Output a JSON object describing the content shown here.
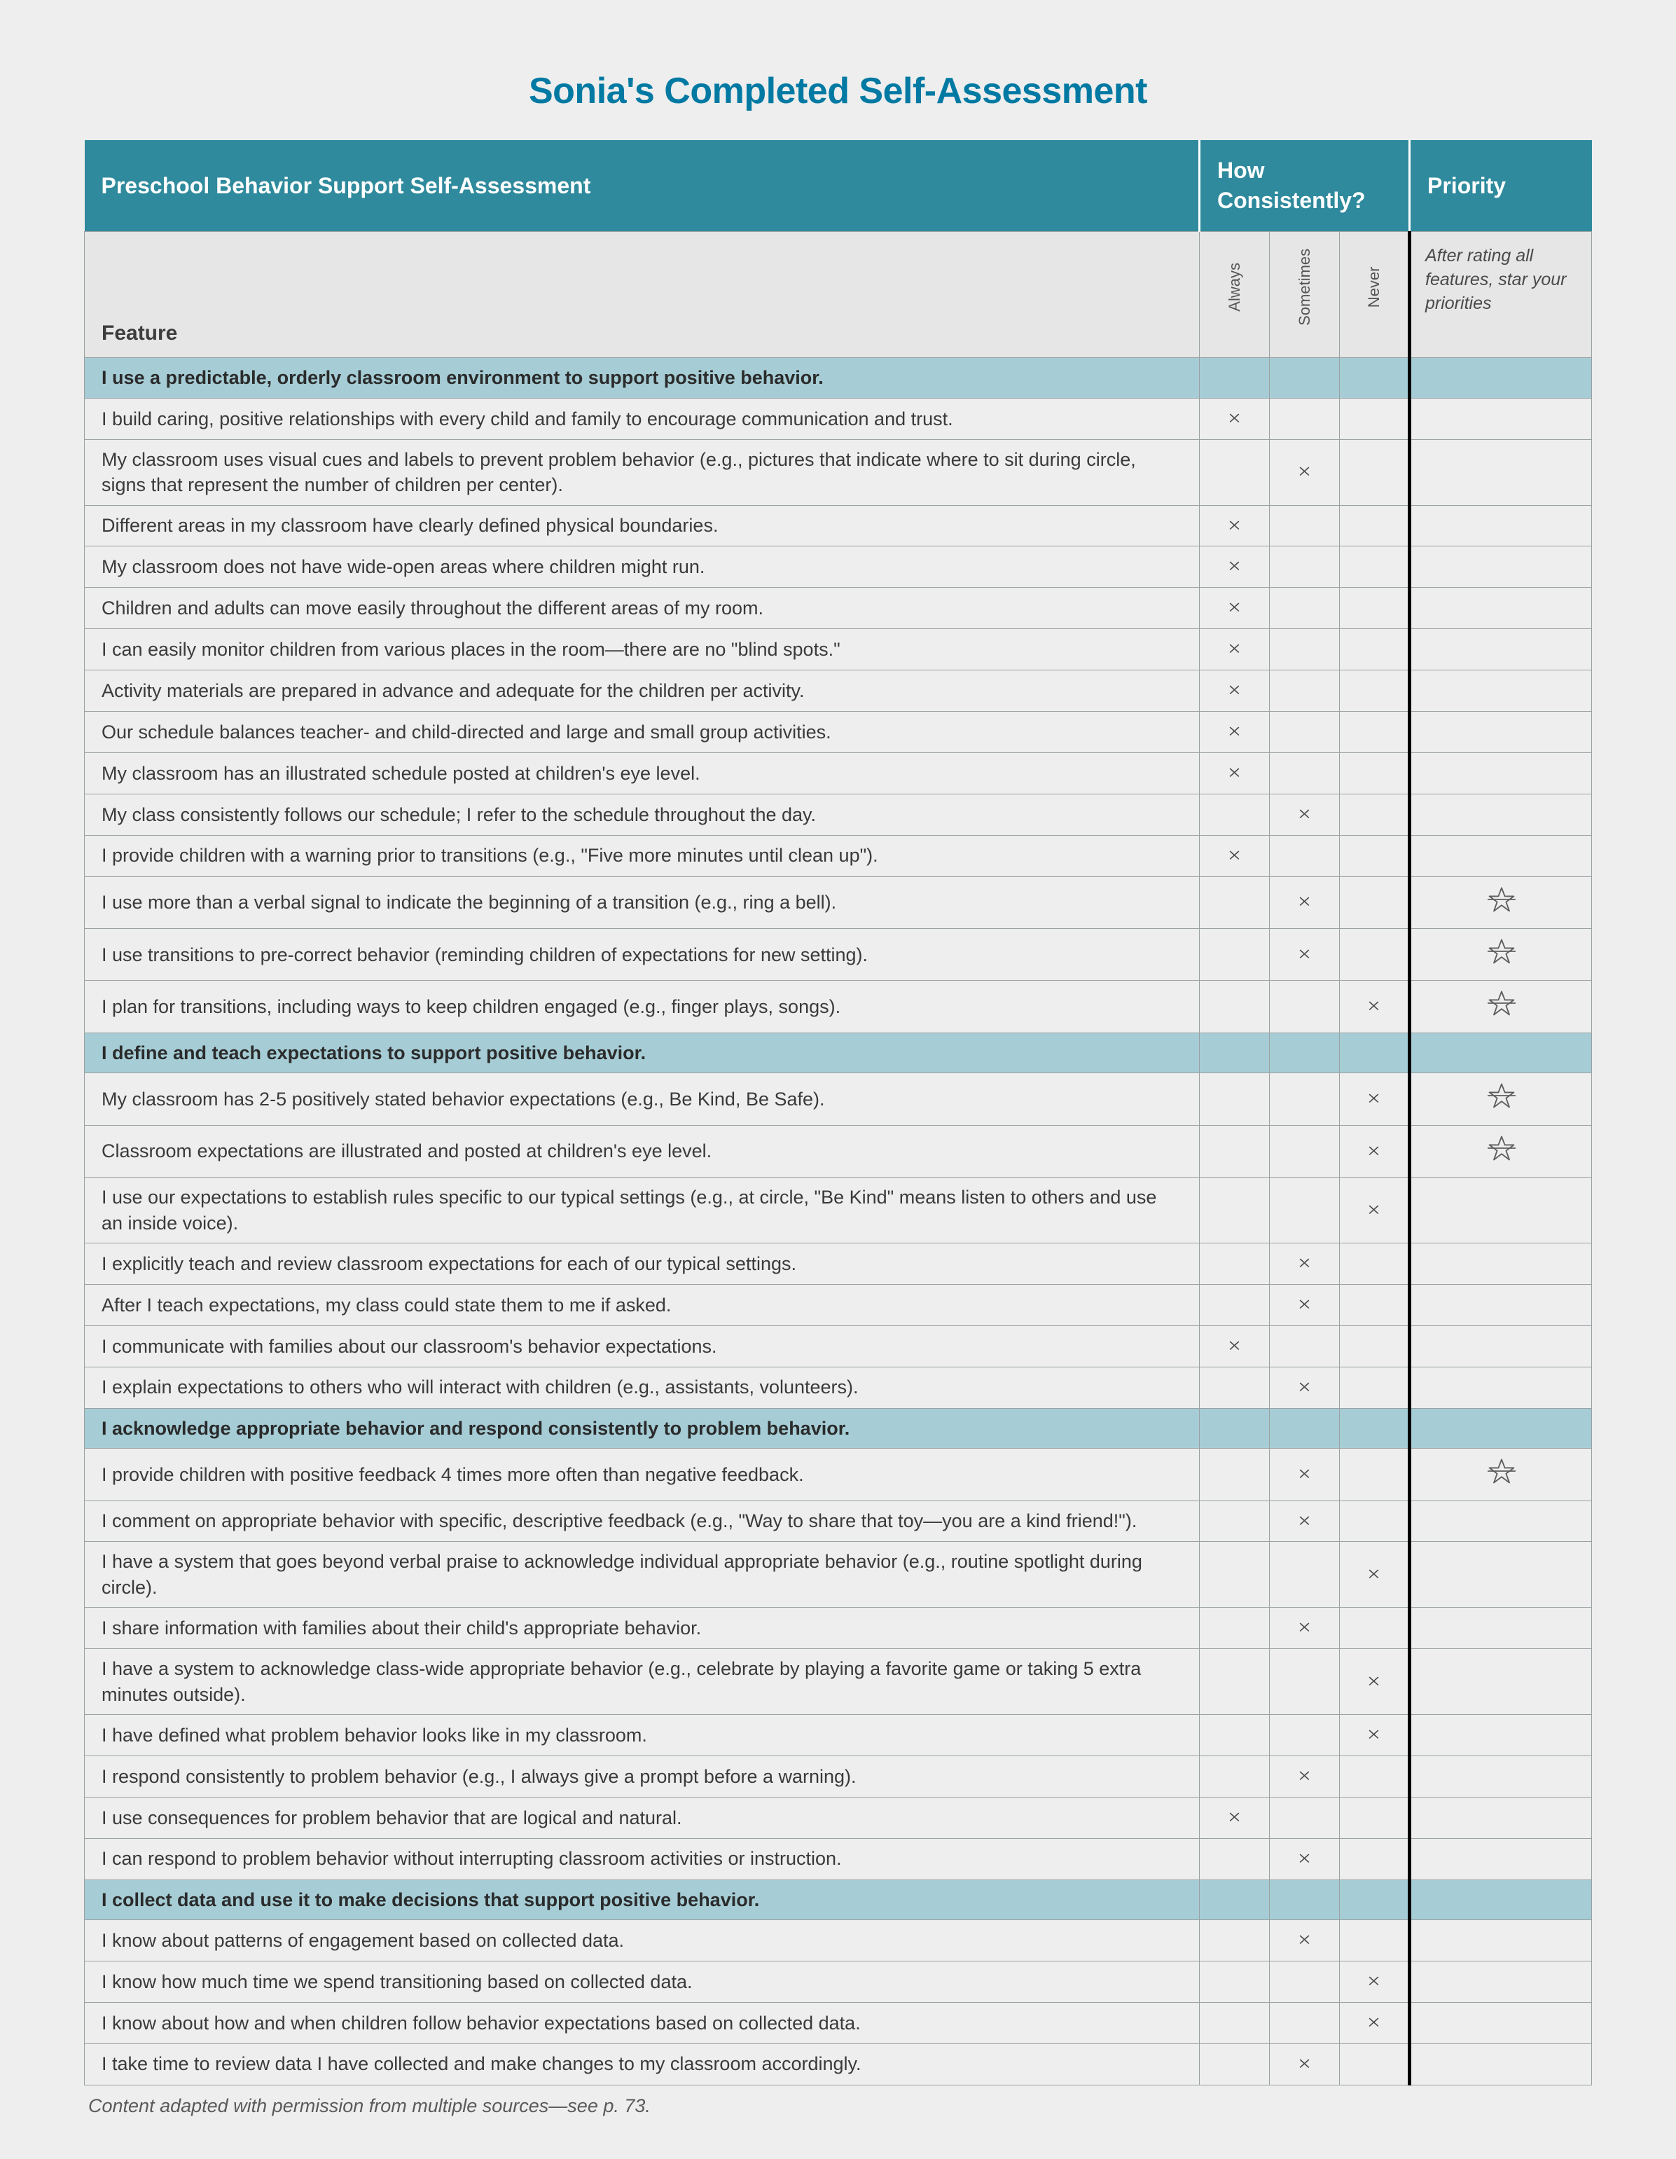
{
  "title": "Sonia's Completed Self-Assessment",
  "header": {
    "main": "Preschool Behavior Support Self-Assessment",
    "consistency": "How Consistently?",
    "priority": "Priority",
    "feature_label": "Feature",
    "col_always": "Always",
    "col_sometimes": "Sometimes",
    "col_never": "Never",
    "priority_note": "After rating all features, star your priorities"
  },
  "footnote": "Content adapted with permission from multiple sources—see p. 73.",
  "colors": {
    "page_bg": "#edeeed",
    "header_bg": "#2e8a9c",
    "section_bg": "#a6cdd6",
    "border": "#9aa1a3",
    "title": "#0079a3",
    "text": "#3a3a3a"
  },
  "sections": [
    {
      "title": "I use a predictable, orderly classroom environment to support positive behavior.",
      "rows": [
        {
          "text": "I build caring, positive relationships with every child and family to encourage communication and trust.",
          "mark": "always",
          "star": false
        },
        {
          "text": "My classroom uses visual cues and labels to prevent problem behavior (e.g., pictures that indicate where to sit during circle, signs that represent the number of children per center).",
          "mark": "sometimes",
          "star": false
        },
        {
          "text": "Different areas in my classroom have clearly defined physical boundaries.",
          "mark": "always",
          "star": false
        },
        {
          "text": "My classroom does not have wide-open areas where children might run.",
          "mark": "always",
          "star": false
        },
        {
          "text": "Children and adults can move easily throughout the different areas of my room.",
          "mark": "always",
          "star": false
        },
        {
          "text": "I can easily monitor children from various places in the room—there are no \"blind spots.\"",
          "mark": "always",
          "star": false
        },
        {
          "text": "Activity materials are prepared in advance and adequate for the children per activity.",
          "mark": "always",
          "star": false
        },
        {
          "text": "Our schedule balances teacher- and child-directed and large and small group activities.",
          "mark": "always",
          "star": false
        },
        {
          "text": "My classroom has an illustrated schedule posted at children's eye level.",
          "mark": "always",
          "star": false
        },
        {
          "text": "My class consistently follows our schedule; I refer to the schedule throughout the day.",
          "mark": "sometimes",
          "star": false
        },
        {
          "text": "I provide children with a warning prior to transitions (e.g., \"Five more minutes until clean up\").",
          "mark": "always",
          "star": false
        },
        {
          "text": "I use more than a verbal signal to indicate the beginning of a transition (e.g., ring a bell).",
          "mark": "sometimes",
          "star": true
        },
        {
          "text": "I use transitions to pre-correct behavior (reminding children of expectations for new setting).",
          "mark": "sometimes",
          "star": true
        },
        {
          "text": "I plan for transitions, including ways to keep children engaged (e.g., finger plays, songs).",
          "mark": "never",
          "star": true
        }
      ]
    },
    {
      "title": "I define and teach expectations to support positive behavior.",
      "rows": [
        {
          "text": "My classroom has 2-5 positively stated behavior expectations (e.g., Be Kind, Be Safe).",
          "mark": "never",
          "star": true
        },
        {
          "text": "Classroom expectations are illustrated and posted at children's eye level.",
          "mark": "never",
          "star": true
        },
        {
          "text": "I use our expectations to establish rules specific to our typical settings (e.g., at circle, \"Be Kind\" means listen to others and use an inside voice).",
          "mark": "never",
          "star": false
        },
        {
          "text": "I explicitly teach and review classroom expectations for each of our typical settings.",
          "mark": "sometimes",
          "star": false
        },
        {
          "text": "After I teach expectations, my class could state them to me if asked.",
          "mark": "sometimes",
          "star": false
        },
        {
          "text": "I communicate with families about our classroom's behavior expectations.",
          "mark": "always",
          "star": false
        },
        {
          "text": "I explain expectations to others who will interact with children (e.g., assistants, volunteers).",
          "mark": "sometimes",
          "star": false
        }
      ]
    },
    {
      "title": "I acknowledge appropriate behavior and respond consistently to problem behavior.",
      "rows": [
        {
          "text": "I provide children with positive feedback 4 times more often than negative feedback.",
          "mark": "sometimes",
          "star": true
        },
        {
          "text": "I comment on appropriate behavior with specific, descriptive feedback (e.g., \"Way to share that toy—you are a kind friend!\").",
          "mark": "sometimes",
          "star": false
        },
        {
          "text": "I have a system that goes beyond verbal praise to acknowledge individual appropriate behavior (e.g., routine spotlight during circle).",
          "mark": "never",
          "star": false
        },
        {
          "text": "I share information with families about their child's appropriate behavior.",
          "mark": "sometimes",
          "star": false
        },
        {
          "text": "I have a system to acknowledge class-wide appropriate behavior (e.g., celebrate by playing a favorite game or taking 5 extra minutes outside).",
          "mark": "never",
          "star": false
        },
        {
          "text": "I have defined what problem behavior looks like in my classroom.",
          "mark": "never",
          "star": false
        },
        {
          "text": "I respond consistently to problem behavior (e.g., I always give a prompt before a warning).",
          "mark": "sometimes",
          "star": false
        },
        {
          "text": "I use consequences for problem behavior that are logical and natural.",
          "mark": "always",
          "star": false
        },
        {
          "text": "I can respond to problem behavior without interrupting classroom activities or instruction.",
          "mark": "sometimes",
          "star": false
        }
      ]
    },
    {
      "title": "I collect data and use it to make decisions that support positive behavior.",
      "rows": [
        {
          "text": "I know about patterns of engagement based on collected data.",
          "mark": "sometimes",
          "star": false
        },
        {
          "text": "I know how much time we spend transitioning based on collected data.",
          "mark": "never",
          "star": false
        },
        {
          "text": "I know about how and when children follow behavior expectations based on collected data.",
          "mark": "never",
          "star": false
        },
        {
          "text": "I take time to review data I have collected and make changes to my classroom accordingly.",
          "mark": "sometimes",
          "star": false
        }
      ]
    }
  ]
}
